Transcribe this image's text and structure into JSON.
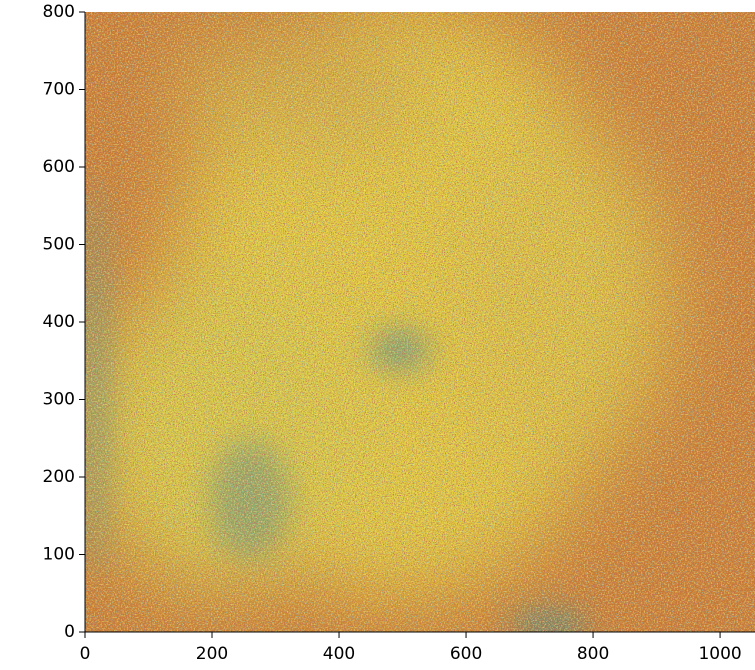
{
  "chart_data": {
    "type": "image",
    "xlim": [
      0,
      1055
    ],
    "ylim": [
      0,
      800
    ],
    "xticks": [
      0,
      200,
      400,
      600,
      800,
      1000
    ],
    "yticks": [
      0,
      100,
      200,
      300,
      400,
      500,
      600,
      700,
      800
    ]
  }
}
